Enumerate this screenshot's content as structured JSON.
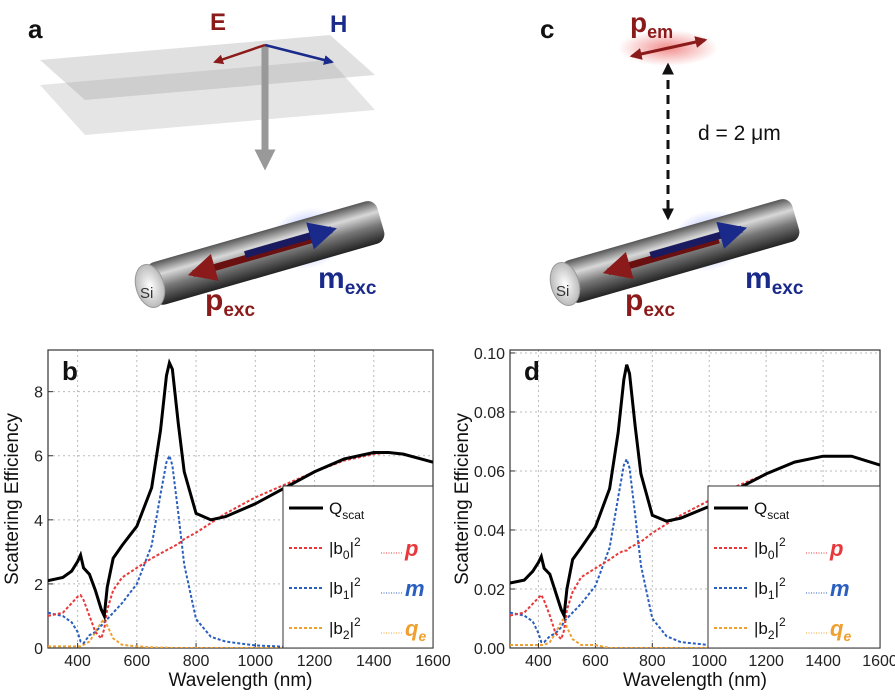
{
  "illustrations": {
    "a": {
      "label": "a",
      "e_field": "E",
      "h_field": "H",
      "rod": "Si",
      "p": "p",
      "p_sub": "exc",
      "m": "m",
      "m_sub": "exc"
    },
    "c": {
      "label": "c",
      "p_em": "p",
      "p_em_sub": "em",
      "distance": "d = 2 μm",
      "rod": "Si",
      "p": "p",
      "p_sub": "exc",
      "m": "m",
      "m_sub": "exc"
    }
  },
  "chart_data": [
    {
      "type": "line",
      "panel_label": "b",
      "xlabel": "Wavelength (nm)",
      "ylabel": "Scattering Efficiency",
      "x": [
        300,
        350,
        380,
        400,
        410,
        420,
        440,
        460,
        480,
        490,
        500,
        520,
        550,
        600,
        650,
        680,
        700,
        710,
        720,
        740,
        760,
        800,
        850,
        900,
        1000,
        1100,
        1200,
        1300,
        1400,
        1450,
        1500,
        1600
      ],
      "xlim": [
        300,
        1600
      ],
      "xticks": [
        400,
        600,
        800,
        1000,
        1200,
        1400,
        1600
      ],
      "ylim": [
        0,
        9.3
      ],
      "yticks": [
        0,
        2,
        4,
        6,
        8
      ],
      "grid": true,
      "legend": "lower right",
      "series": [
        {
          "name": "Q",
          "name_sub": "scat",
          "color": "#000000",
          "style": "solid",
          "values": [
            2.1,
            2.2,
            2.4,
            2.7,
            2.9,
            2.5,
            2.3,
            1.8,
            1.2,
            1.0,
            1.9,
            2.8,
            3.2,
            3.8,
            5.0,
            6.8,
            8.5,
            8.9,
            8.7,
            7.0,
            5.5,
            4.2,
            4.0,
            4.1,
            4.5,
            5.0,
            5.5,
            5.9,
            6.1,
            6.1,
            6.05,
            5.8
          ]
        },
        {
          "name": "|b",
          "name_sub": "0",
          "name_end": "|",
          "name_sup": "2",
          "symbol": "p",
          "color": "#e8383a",
          "style": "dashed",
          "values": [
            1.0,
            1.1,
            1.4,
            1.6,
            1.65,
            1.5,
            1.0,
            0.5,
            0.3,
            0.6,
            1.2,
            1.8,
            2.2,
            2.5,
            2.8,
            2.95,
            3.05,
            3.1,
            3.15,
            3.25,
            3.4,
            3.6,
            3.9,
            4.2,
            4.7,
            5.1,
            5.5,
            5.85,
            6.05,
            6.1,
            6.05,
            5.8
          ]
        },
        {
          "name": "|b",
          "name_sub": "1",
          "name_end": "|",
          "name_sup": "2",
          "symbol": "m",
          "color": "#2a5fbf",
          "style": "dashed",
          "values": [
            1.1,
            1.0,
            0.8,
            0.5,
            0.2,
            0.15,
            0.4,
            0.5,
            0.7,
            0.8,
            0.9,
            1.1,
            1.4,
            2.0,
            3.2,
            4.8,
            5.8,
            6.0,
            5.7,
            4.2,
            2.6,
            0.9,
            0.35,
            0.2,
            0.08,
            0.04,
            0.02,
            0.01,
            0.01,
            0,
            0,
            0
          ]
        },
        {
          "name": "|b",
          "name_sub": "2",
          "name_end": "|",
          "name_sup": "2",
          "symbol": "q",
          "symbol_sub": "e",
          "color": "#f0a030",
          "style": "dashed",
          "values": [
            0.05,
            0.05,
            0.05,
            0.05,
            0.05,
            0.1,
            0.2,
            0.5,
            0.8,
            0.9,
            0.7,
            0.3,
            0.1,
            0.05,
            0.02,
            0.01,
            0.01,
            0,
            0,
            0,
            0,
            0,
            0,
            0,
            0,
            0,
            0,
            0,
            0,
            0,
            0,
            0
          ]
        }
      ]
    },
    {
      "type": "line",
      "panel_label": "d",
      "xlabel": "Wavelength (nm)",
      "ylabel": "Scattering Efficiency",
      "x": [
        300,
        350,
        380,
        400,
        410,
        420,
        440,
        460,
        480,
        490,
        500,
        520,
        550,
        600,
        650,
        680,
        700,
        710,
        720,
        740,
        760,
        800,
        850,
        900,
        1000,
        1100,
        1200,
        1300,
        1400,
        1450,
        1500,
        1600
      ],
      "xlim": [
        300,
        1600
      ],
      "xticks": [
        400,
        600,
        800,
        1000,
        1200,
        1400,
        1600
      ],
      "ylim": [
        0,
        0.101
      ],
      "yticks": [
        {
          "value": 0,
          "label": "0.00"
        },
        0.02,
        0.04,
        0.06,
        0.08,
        {
          "value": 0.1,
          "label": "0.10"
        }
      ],
      "grid": true,
      "legend": "lower right",
      "series": [
        {
          "name": "Q",
          "name_sub": "scat",
          "color": "#000000",
          "style": "solid",
          "values": [
            0.022,
            0.023,
            0.026,
            0.029,
            0.031,
            0.027,
            0.025,
            0.019,
            0.013,
            0.011,
            0.02,
            0.03,
            0.034,
            0.041,
            0.054,
            0.073,
            0.091,
            0.096,
            0.093,
            0.075,
            0.059,
            0.045,
            0.043,
            0.044,
            0.048,
            0.054,
            0.059,
            0.063,
            0.065,
            0.065,
            0.065,
            0.062
          ]
        },
        {
          "name": "|b",
          "name_sub": "0",
          "name_end": "|",
          "name_sup": "2",
          "symbol": "p",
          "color": "#e8383a",
          "style": "dashed",
          "values": [
            0.011,
            0.012,
            0.015,
            0.017,
            0.018,
            0.016,
            0.011,
            0.005,
            0.003,
            0.006,
            0.013,
            0.019,
            0.024,
            0.027,
            0.03,
            0.032,
            0.033,
            0.033,
            0.034,
            0.035,
            0.036,
            0.039,
            0.042,
            0.045,
            0.05,
            0.055,
            0.059,
            0.063,
            0.065,
            0.065,
            0.065,
            0.062
          ]
        },
        {
          "name": "|b",
          "name_sub": "1",
          "name_end": "|",
          "name_sup": "2",
          "symbol": "m",
          "color": "#2a5fbf",
          "style": "dashed",
          "values": [
            0.012,
            0.011,
            0.009,
            0.005,
            0.002,
            0.002,
            0.004,
            0.005,
            0.007,
            0.009,
            0.01,
            0.012,
            0.015,
            0.021,
            0.034,
            0.051,
            0.062,
            0.064,
            0.061,
            0.045,
            0.028,
            0.01,
            0.004,
            0.002,
            0.001,
            0,
            0,
            0,
            0,
            0,
            0,
            0
          ]
        },
        {
          "name": "|b",
          "name_sub": "2",
          "name_end": "|",
          "name_sup": "2",
          "symbol": "q",
          "symbol_sub": "e",
          "color": "#f0a030",
          "style": "dashed",
          "values": [
            0.001,
            0.001,
            0.001,
            0.001,
            0.001,
            0.001,
            0.002,
            0.005,
            0.009,
            0.01,
            0.007,
            0.003,
            0.001,
            0.001,
            0,
            0,
            0,
            0,
            0,
            0,
            0,
            0,
            0,
            0,
            0,
            0,
            0,
            0,
            0,
            0,
            0,
            0
          ]
        }
      ]
    }
  ]
}
